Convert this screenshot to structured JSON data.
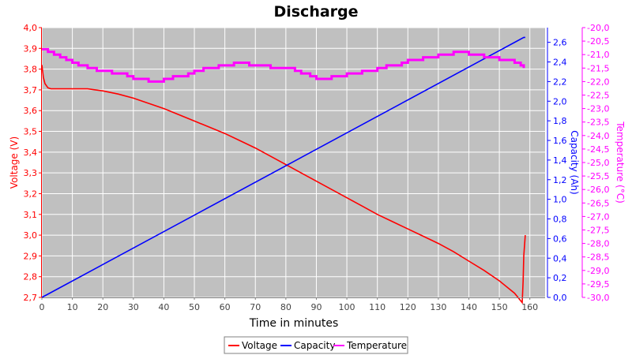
{
  "chart_data": {
    "type": "line",
    "title": "Discharge",
    "xlabel": "Time in minutes",
    "xlim": [
      0,
      165
    ],
    "xticks": [
      "0",
      "10",
      "20",
      "30",
      "40",
      "50",
      "60",
      "70",
      "80",
      "90",
      "100",
      "110",
      "120",
      "130",
      "140",
      "150",
      "160"
    ],
    "grid": true,
    "legend_position": "bottom",
    "axes": {
      "left": {
        "label": "Voltage (V)",
        "range": [
          2.7,
          4.0
        ],
        "color": "#ff0000",
        "ticks": [
          "2,7",
          "2,8",
          "2,9",
          "3,0",
          "3,1",
          "3,2",
          "3,3",
          "3,4",
          "3,5",
          "3,6",
          "3,7",
          "3,8",
          "3,9",
          "4,0"
        ]
      },
      "right1": {
        "label": "Capacity (Ah)",
        "range": [
          0.0,
          2.75
        ],
        "color": "#0000ff",
        "ticks": [
          "0,0",
          "0,2",
          "0,4",
          "0,6",
          "0,8",
          "1,0",
          "1,2",
          "1,4",
          "1,6",
          "1,8",
          "2,0",
          "2,2",
          "2,4",
          "2,6"
        ]
      },
      "right2": {
        "label": "Temperature (°C)",
        "range": [
          -30.0,
          -20.0
        ],
        "color": "#ff00ff",
        "ticks": [
          "-30,0",
          "-29,5",
          "-29,0",
          "-28,5",
          "-28,0",
          "-27,5",
          "-27,0",
          "-26,5",
          "-26,0",
          "-25,5",
          "-25,0",
          "-24,5",
          "-24,0",
          "-23,5",
          "-23,0",
          "-22,5",
          "-22,0",
          "-21,5",
          "-21,0",
          "-20,5",
          "-20,0"
        ]
      }
    },
    "series": [
      {
        "name": "Voltage",
        "axis": "left",
        "color": "#ff0000",
        "x": [
          0,
          0.5,
          1,
          2,
          3,
          5,
          10,
          15,
          20,
          25,
          30,
          35,
          40,
          45,
          50,
          55,
          60,
          65,
          70,
          75,
          80,
          85,
          90,
          95,
          100,
          105,
          110,
          115,
          120,
          125,
          130,
          135,
          140,
          145,
          150,
          155,
          157.5,
          157.8,
          158,
          158.5
        ],
        "y": [
          3.82,
          3.76,
          3.73,
          3.71,
          3.705,
          3.705,
          3.705,
          3.705,
          3.695,
          3.68,
          3.66,
          3.635,
          3.61,
          3.58,
          3.55,
          3.52,
          3.49,
          3.455,
          3.42,
          3.38,
          3.34,
          3.3,
          3.26,
          3.22,
          3.18,
          3.14,
          3.1,
          3.065,
          3.03,
          2.995,
          2.96,
          2.92,
          2.875,
          2.83,
          2.78,
          2.72,
          2.675,
          2.78,
          2.9,
          3.0
        ]
      },
      {
        "name": "Capacity",
        "axis": "right1",
        "color": "#0000ff",
        "x": [
          0,
          158,
          158.5
        ],
        "y": [
          0.0,
          2.65,
          2.65
        ]
      },
      {
        "name": "Temperature",
        "axis": "right2",
        "color": "#ff00ff",
        "x": [
          0,
          2,
          4,
          6,
          8,
          10,
          12,
          15,
          18,
          20,
          23,
          25,
          28,
          30,
          33,
          35,
          38,
          40,
          43,
          45,
          48,
          50,
          53,
          55,
          58,
          60,
          63,
          65,
          68,
          70,
          75,
          80,
          83,
          85,
          88,
          90,
          93,
          95,
          98,
          100,
          103,
          105,
          108,
          110,
          113,
          115,
          118,
          120,
          123,
          125,
          128,
          130,
          133,
          135,
          138,
          140,
          143,
          145,
          148,
          150,
          153,
          155,
          157,
          158
        ],
        "y": [
          -20.8,
          -20.9,
          -21.0,
          -21.1,
          -21.2,
          -21.3,
          -21.4,
          -21.5,
          -21.6,
          -21.6,
          -21.7,
          -21.7,
          -21.8,
          -21.9,
          -21.9,
          -22.0,
          -22.0,
          -21.9,
          -21.8,
          -21.8,
          -21.7,
          -21.6,
          -21.5,
          -21.5,
          -21.4,
          -21.4,
          -21.3,
          -21.3,
          -21.4,
          -21.4,
          -21.5,
          -21.5,
          -21.6,
          -21.7,
          -21.8,
          -21.9,
          -21.9,
          -21.8,
          -21.8,
          -21.7,
          -21.7,
          -21.6,
          -21.6,
          -21.5,
          -21.4,
          -21.4,
          -21.3,
          -21.2,
          -21.2,
          -21.1,
          -21.1,
          -21.0,
          -21.0,
          -20.9,
          -20.9,
          -21.0,
          -21.0,
          -21.1,
          -21.1,
          -21.2,
          -21.2,
          -21.3,
          -21.4,
          -21.5
        ]
      }
    ],
    "legend": [
      "Voltage",
      "Capacity",
      "Temperature"
    ]
  }
}
